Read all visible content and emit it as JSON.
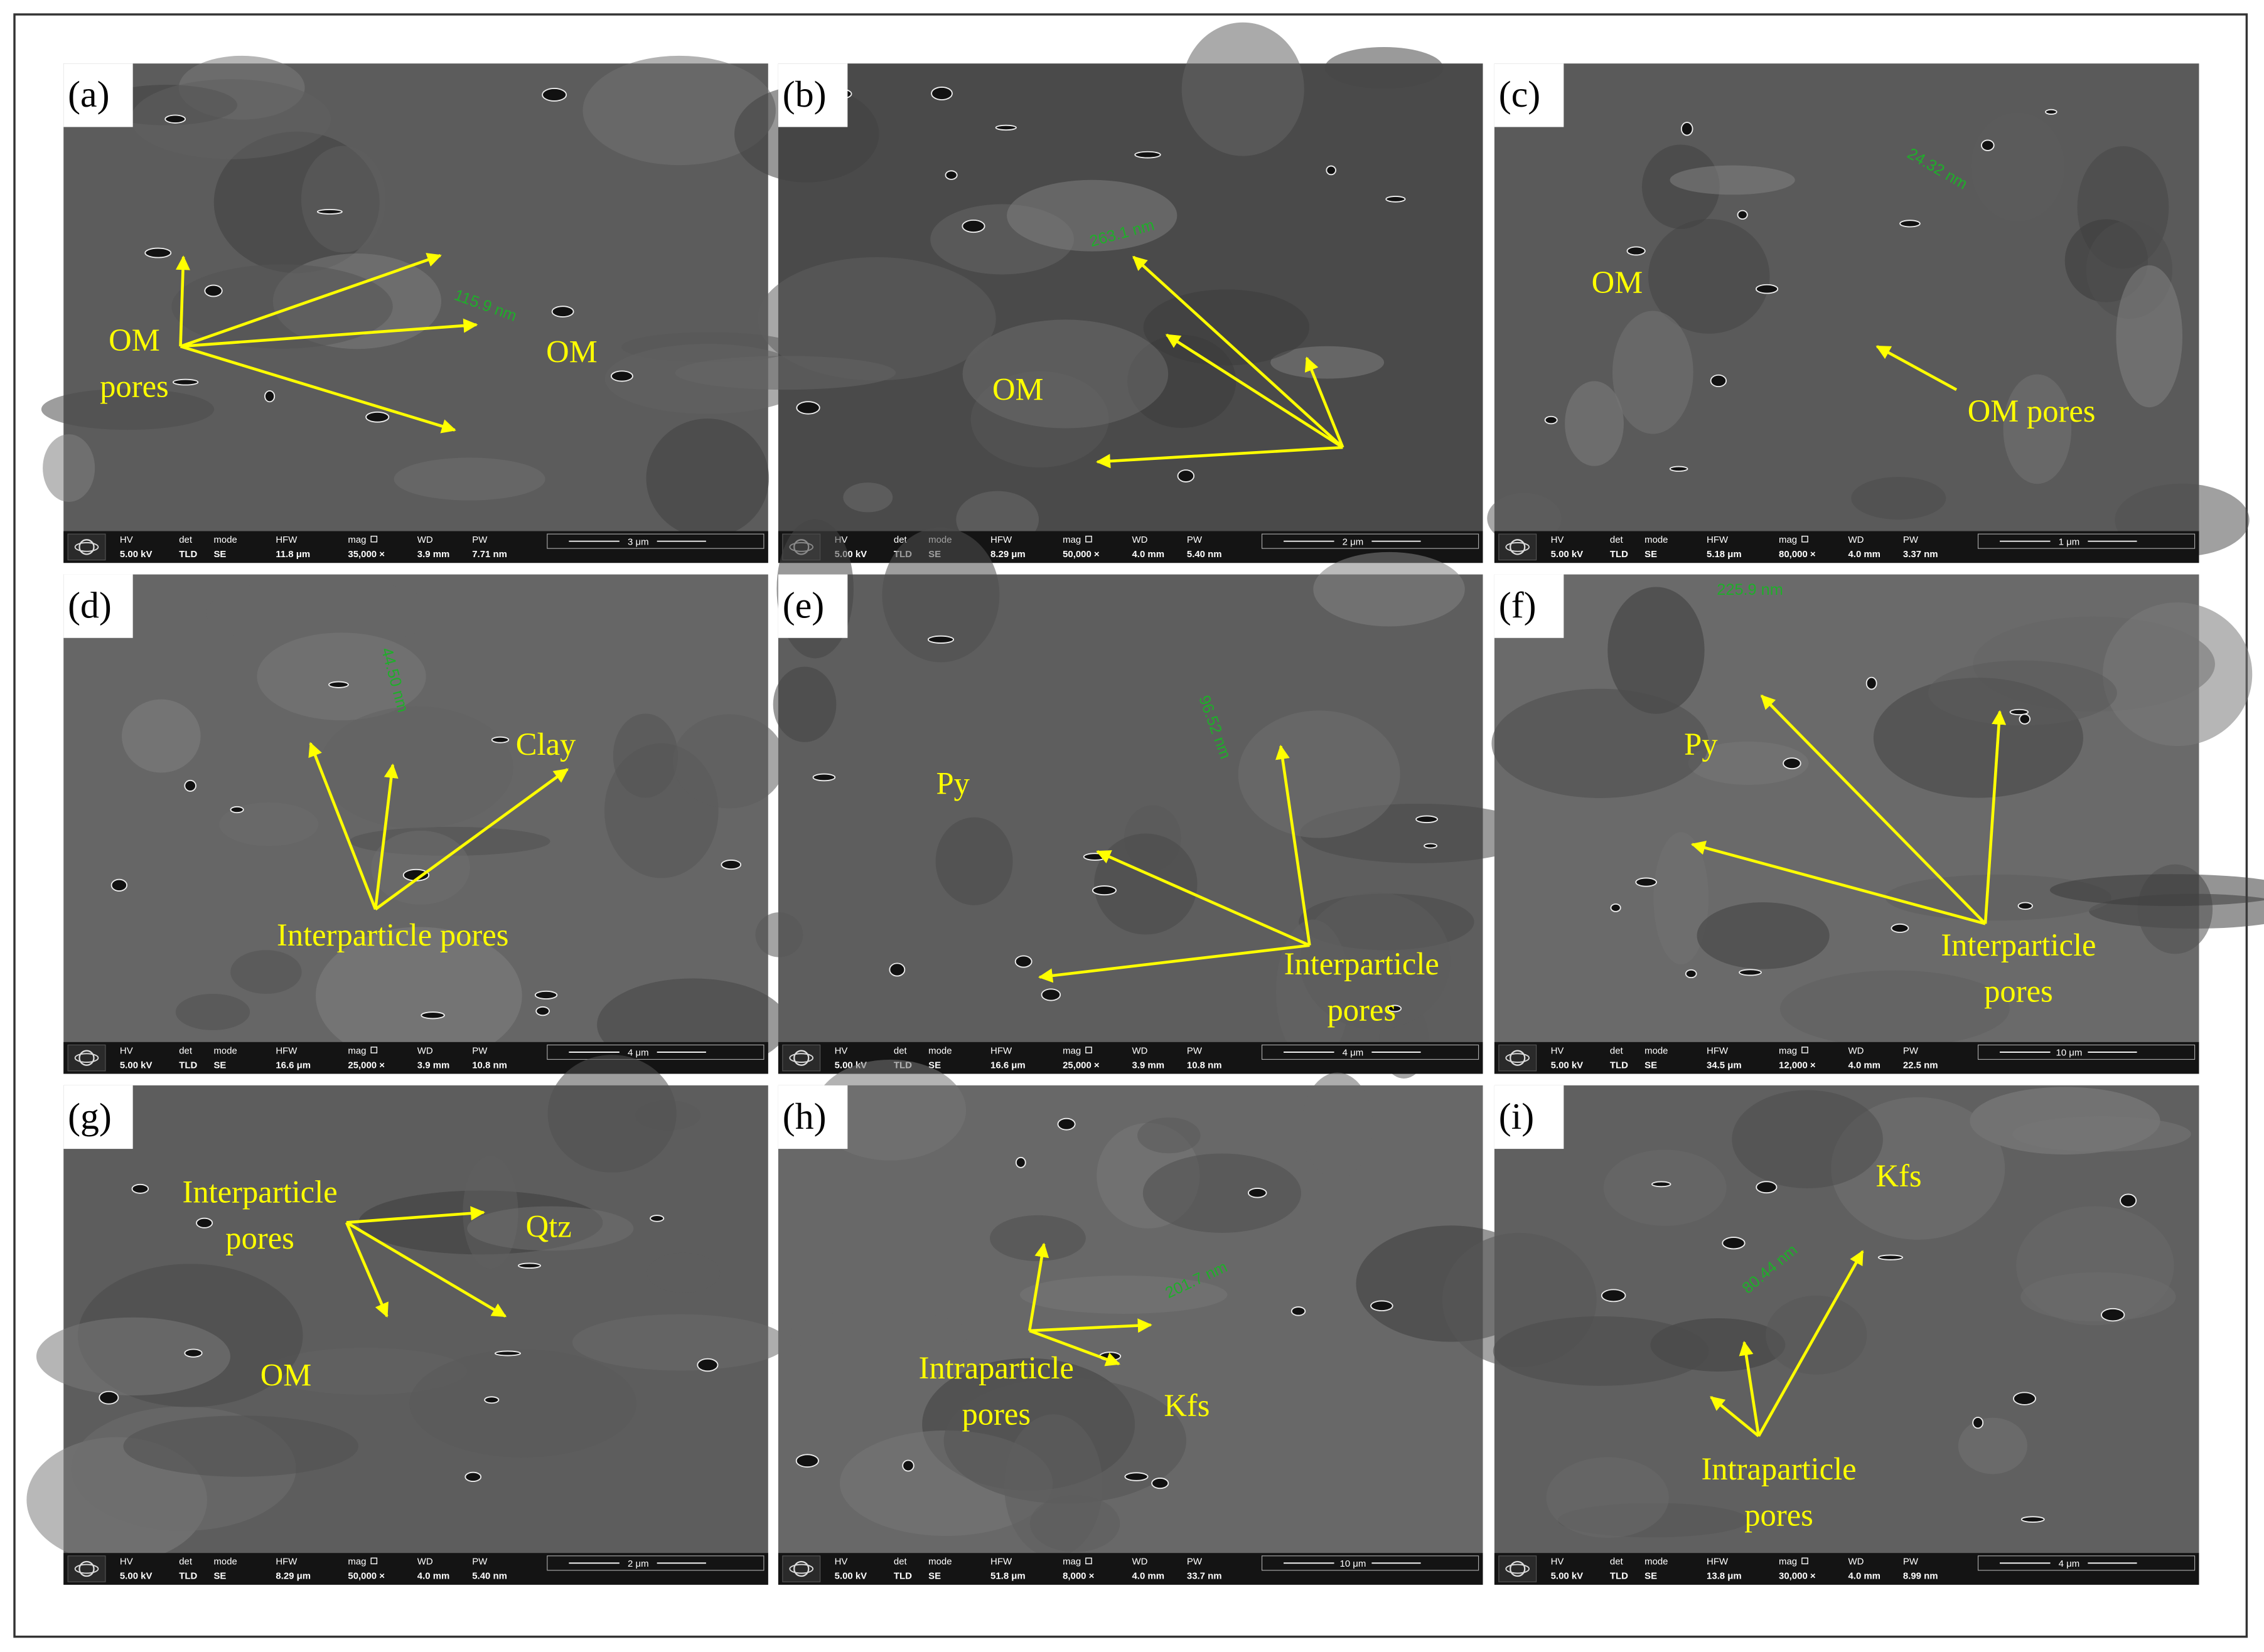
{
  "info_bar_labels": [
    "HV",
    "det",
    "mode",
    "HFW",
    "mag",
    "WD",
    "PW"
  ],
  "panels": [
    {
      "label": "(a)",
      "annotations": [
        {
          "lines": [
            "OM",
            "pores"
          ]
        },
        {
          "lines": [
            "OM"
          ]
        }
      ],
      "measurement": "115.9 nm",
      "info_values": [
        "5.00 kV",
        "TLD",
        "SE",
        "11.8 μm",
        "35,000 ×",
        "3.9 mm",
        "7.71 nm"
      ],
      "scale_bar": "3 μm"
    },
    {
      "label": "(b)",
      "annotations": [
        {
          "lines": [
            "OM"
          ]
        }
      ],
      "measurement": "263.1 nm",
      "info_values": [
        "5.00 kV",
        "TLD",
        "SE",
        "8.29 μm",
        "50,000 ×",
        "4.0 mm",
        "5.40 nm"
      ],
      "scale_bar": "2 μm"
    },
    {
      "label": "(c)",
      "annotations": [
        {
          "lines": [
            "OM"
          ]
        },
        {
          "lines": [
            "OM pores"
          ]
        }
      ],
      "measurement": "24.32 nm",
      "info_values": [
        "5.00 kV",
        "TLD",
        "SE",
        "5.18 μm",
        "80,000 ×",
        "4.0 mm",
        "3.37 nm"
      ],
      "scale_bar": "1 μm"
    },
    {
      "label": "(d)",
      "annotations": [
        {
          "lines": [
            "Clay"
          ]
        },
        {
          "lines": [
            "Interparticle pores"
          ]
        }
      ],
      "measurement": "44.50 nm",
      "info_values": [
        "5.00 kV",
        "TLD",
        "SE",
        "16.6 μm",
        "25,000 ×",
        "3.9 mm",
        "10.8 nm"
      ],
      "scale_bar": "4 μm"
    },
    {
      "label": "(e)",
      "annotations": [
        {
          "lines": [
            "Py"
          ]
        },
        {
          "lines": [
            "Interparticle",
            "pores"
          ]
        }
      ],
      "measurement": "96.52 nm",
      "info_values": [
        "5.00 kV",
        "TLD",
        "SE",
        "16.6 μm",
        "25,000 ×",
        "3.9 mm",
        "10.8 nm"
      ],
      "scale_bar": "4 μm"
    },
    {
      "label": "(f)",
      "annotations": [
        {
          "lines": [
            "Py"
          ]
        },
        {
          "lines": [
            "Interparticle",
            "pores"
          ]
        }
      ],
      "measurement": "225.9 nm",
      "info_values": [
        "5.00 kV",
        "TLD",
        "SE",
        "34.5 μm",
        "12,000 ×",
        "4.0 mm",
        "22.5 nm"
      ],
      "scale_bar": "10 μm"
    },
    {
      "label": "(g)",
      "annotations": [
        {
          "lines": [
            "Interparticle",
            "pores"
          ]
        },
        {
          "lines": [
            "Qtz"
          ]
        },
        {
          "lines": [
            "OM"
          ]
        }
      ],
      "measurement": null,
      "info_values": [
        "5.00 kV",
        "TLD",
        "SE",
        "8.29 μm",
        "50,000 ×",
        "4.0 mm",
        "5.40 nm"
      ],
      "scale_bar": "2 μm"
    },
    {
      "label": "(h)",
      "annotations": [
        {
          "lines": [
            "Intraparticle",
            "pores"
          ]
        },
        {
          "lines": [
            "Kfs"
          ]
        }
      ],
      "measurement": "201.7 nm",
      "info_values": [
        "5.00 kV",
        "TLD",
        "SE",
        "51.8 μm",
        "8,000 ×",
        "4.0 mm",
        "33.7 nm"
      ],
      "scale_bar": "10 μm"
    },
    {
      "label": "(i)",
      "annotations": [
        {
          "lines": [
            "Kfs"
          ]
        },
        {
          "lines": [
            "Intraparticle",
            "pores"
          ]
        }
      ],
      "measurement": "80.44 nm",
      "info_values": [
        "5.00 kV",
        "TLD",
        "SE",
        "13.8 μm",
        "30,000 ×",
        "4.0 mm",
        "8.99 nm"
      ],
      "scale_bar": "4 μm"
    }
  ]
}
